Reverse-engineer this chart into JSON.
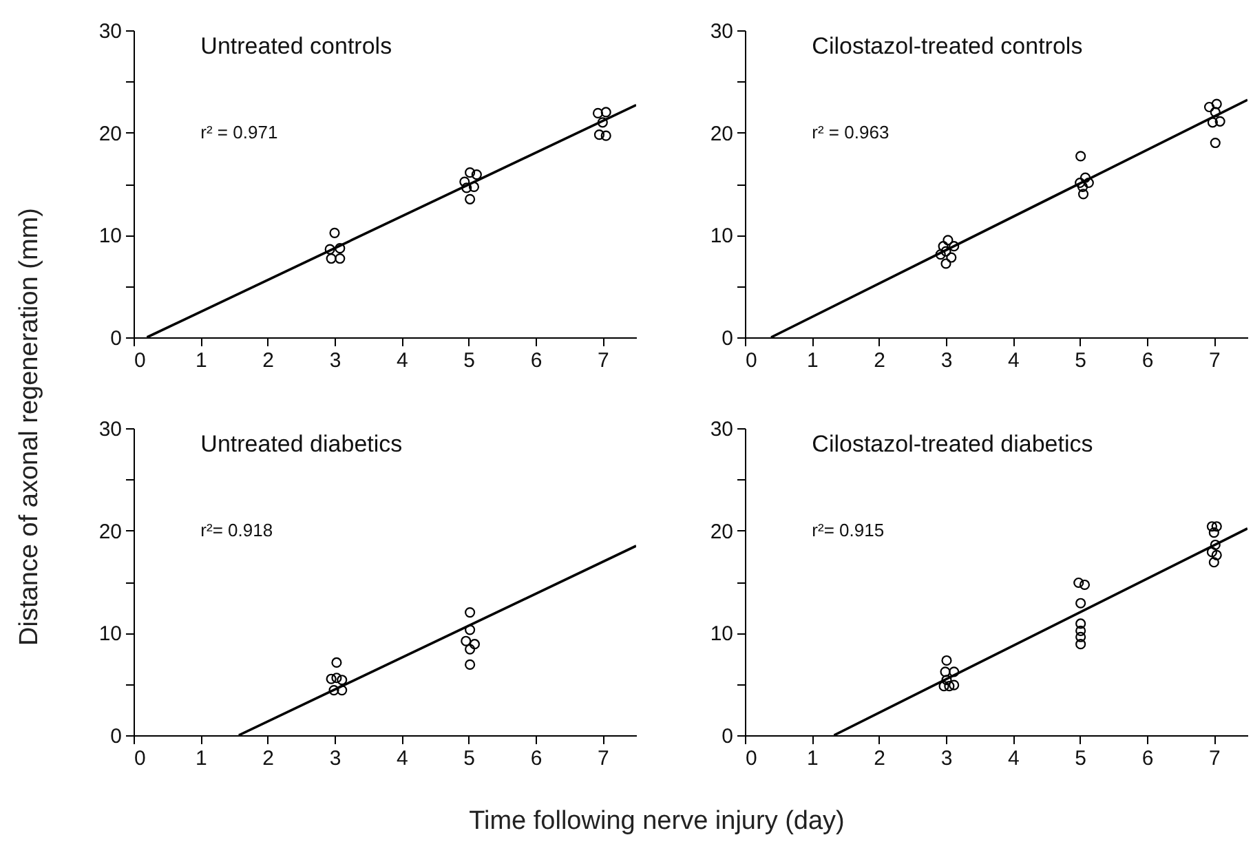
{
  "chart_data": [
    {
      "type": "scatter",
      "title": "Untreated controls",
      "ylabel": "Distance of axonal regeneration (mm)",
      "annotations": [
        "r² = 0.971"
      ],
      "marker": "circle",
      "xlim": [
        0,
        7.5
      ],
      "xticks": [
        0,
        1,
        2,
        3,
        4,
        5,
        6,
        7
      ],
      "ylim": [
        0,
        30
      ],
      "yticks": [
        0,
        {
          "value": 5,
          "label": null
        },
        10,
        {
          "value": 15,
          "label": null
        },
        20,
        {
          "value": 25,
          "label": null
        },
        30
      ],
      "series": [
        {
          "color": "#000000",
          "x": [
            3.0,
            2.93,
            3.08,
            2.95,
            3.08,
            5.02,
            5.12,
            4.94,
            5.08,
            4.97,
            5.02,
            6.93,
            7.05,
            7.0,
            6.95,
            7.05
          ],
          "values": [
            10.2,
            8.6,
            8.7,
            7.7,
            7.7,
            16.1,
            15.9,
            15.2,
            14.7,
            14.6,
            13.5,
            21.9,
            22.0,
            21.0,
            19.8,
            19.7
          ]
        },
        {
          "type": "line",
          "color": "#000000",
          "marker": "none",
          "x": [
            0.2,
            7.5
          ],
          "values": [
            0,
            22.7
          ]
        }
      ]
    },
    {
      "type": "scatter",
      "title": "Cilostazol-treated controls",
      "annotations": [
        "r² = 0.963"
      ],
      "marker": "circle",
      "xlim": [
        0,
        7.5
      ],
      "xticks": [
        0,
        1,
        2,
        3,
        4,
        5,
        6,
        7
      ],
      "ylim": [
        0,
        30
      ],
      "yticks": [
        0,
        {
          "value": 5,
          "label": null
        },
        10,
        {
          "value": 15,
          "label": null
        },
        20,
        {
          "value": 25,
          "label": null
        },
        30
      ],
      "series": [
        {
          "color": "#000000",
          "x": [
            3.03,
            2.96,
            3.12,
            3.0,
            2.92,
            3.08,
            3.0,
            5.01,
            5.08,
            5.0,
            5.13,
            5.04,
            5.05,
            6.93,
            7.04,
            7.02,
            6.98,
            7.09,
            7.02
          ],
          "values": [
            9.5,
            8.9,
            8.9,
            8.4,
            8.1,
            7.8,
            7.2,
            17.7,
            15.6,
            15.1,
            15.1,
            14.7,
            14.0,
            22.5,
            22.8,
            22.0,
            21.0,
            21.1,
            19.0
          ]
        },
        {
          "type": "line",
          "color": "#000000",
          "marker": "none",
          "x": [
            0.39,
            7.5
          ],
          "values": [
            0,
            23.2
          ]
        }
      ]
    },
    {
      "type": "scatter",
      "title": "Untreated diabetics",
      "xlabel": "Time following nerve injury (day)",
      "annotations": [
        "r²= 0.918"
      ],
      "marker": "circle",
      "xlim": [
        0,
        7.5
      ],
      "xticks": [
        0,
        1,
        2,
        3,
        4,
        5,
        6,
        7
      ],
      "ylim": [
        0,
        30
      ],
      "yticks": [
        0,
        {
          "value": 5,
          "label": null
        },
        10,
        {
          "value": 15,
          "label": null
        },
        20,
        {
          "value": 25,
          "label": null
        },
        30
      ],
      "series": [
        {
          "color": "#000000",
          "x": [
            3.03,
            2.95,
            3.03,
            3.11,
            2.99,
            3.11,
            5.02,
            5.02,
            4.96,
            5.09,
            5.02,
            5.02
          ],
          "values": [
            7.1,
            5.5,
            5.6,
            5.4,
            4.4,
            4.4,
            12.0,
            10.3,
            9.2,
            8.9,
            8.4,
            6.9
          ]
        },
        {
          "type": "line",
          "color": "#000000",
          "marker": "none",
          "x": [
            1.57,
            7.5
          ],
          "values": [
            0,
            18.5
          ]
        }
      ]
    },
    {
      "type": "scatter",
      "title": "Cilostazol-treated diabetics",
      "annotations": [
        "r²= 0.915"
      ],
      "marker": "circle",
      "xlim": [
        0,
        7.5
      ],
      "xticks": [
        0,
        1,
        2,
        3,
        4,
        5,
        6,
        7
      ],
      "ylim": [
        0,
        30
      ],
      "yticks": [
        0,
        {
          "value": 5,
          "label": null
        },
        10,
        {
          "value": 15,
          "label": null
        },
        20,
        {
          "value": 25,
          "label": null
        },
        30
      ],
      "series": [
        {
          "color": "#000000",
          "x": [
            3.01,
            2.99,
            3.12,
            3.01,
            2.97,
            3.05,
            3.12,
            4.98,
            5.07,
            5.01,
            5.01,
            5.01,
            5.01,
            5.01,
            6.97,
            7.04,
            7.0,
            7.02,
            6.97,
            7.04,
            7.0
          ],
          "values": [
            7.3,
            6.2,
            6.2,
            5.4,
            4.8,
            4.8,
            4.9,
            14.9,
            14.7,
            12.9,
            10.9,
            10.2,
            9.6,
            8.9,
            20.4,
            20.4,
            19.8,
            18.6,
            17.9,
            17.6,
            16.9
          ]
        },
        {
          "type": "line",
          "color": "#000000",
          "marker": "none",
          "x": [
            1.33,
            7.5
          ],
          "values": [
            0,
            20.2
          ]
        }
      ]
    }
  ]
}
